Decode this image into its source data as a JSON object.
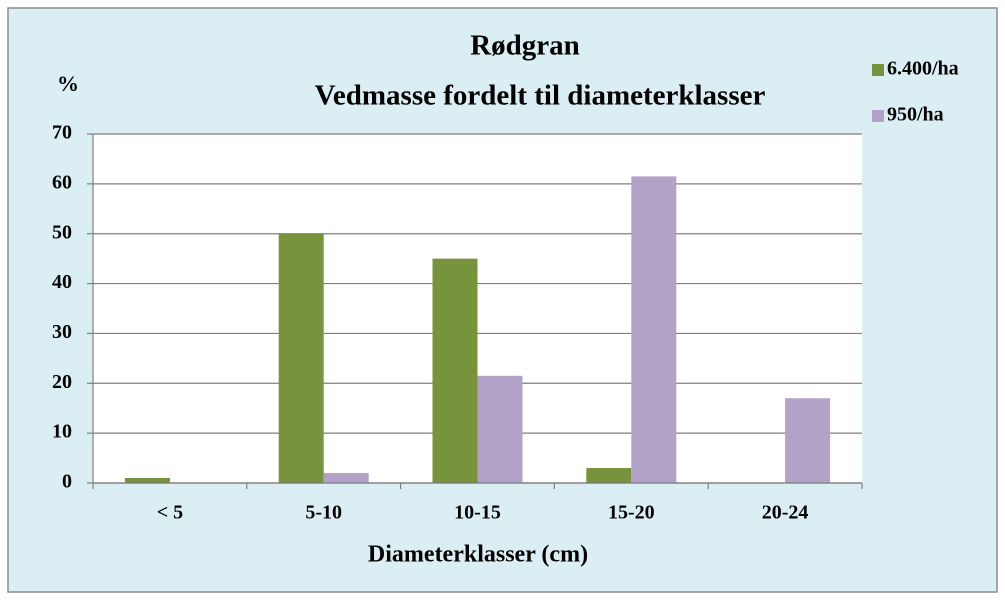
{
  "chart_data": {
    "type": "bar",
    "title": [
      "Rødgran",
      "Vedmasse fordelt til diameterklasser"
    ],
    "y_label": "%",
    "x_label": "Diameterklasser (cm)",
    "categories": [
      "< 5",
      "5-10",
      "10-15",
      "15-20",
      "20-24"
    ],
    "series": [
      {
        "name": "6.400/ha",
        "color": "#77933c",
        "values": [
          1,
          50,
          45,
          3,
          0
        ]
      },
      {
        "name": "950/ha",
        "color": "#b3a2c7",
        "values": [
          0,
          2,
          21.5,
          61.5,
          17
        ]
      }
    ],
    "ylim": [
      0,
      70
    ],
    "yticks": [
      0,
      10,
      20,
      30,
      40,
      50,
      60,
      70
    ],
    "grid": true,
    "legend": "right"
  }
}
